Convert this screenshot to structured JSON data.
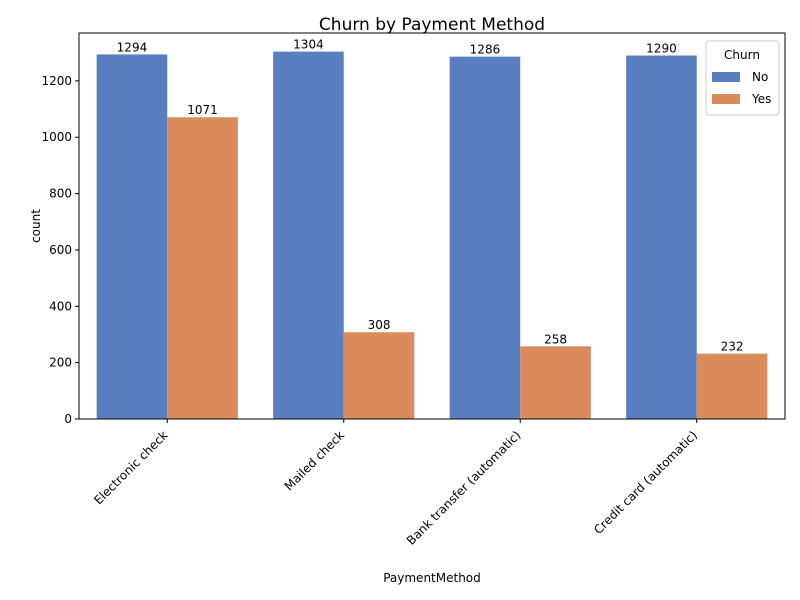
{
  "chart_data": {
    "type": "bar",
    "title": "Churn by Payment Method",
    "xlabel": "PaymentMethod",
    "ylabel": "count",
    "categories": [
      "Electronic check",
      "Mailed check",
      "Bank transfer (automatic)",
      "Credit card (automatic)"
    ],
    "series": [
      {
        "name": "No",
        "values": [
          1294,
          1304,
          1286,
          1290
        ],
        "color": "#5a7fc1"
      },
      {
        "name": "Yes",
        "values": [
          1071,
          308,
          258,
          232
        ],
        "color": "#d98b5b"
      }
    ],
    "ylim": [
      0,
      1370
    ],
    "yticks": [
      0,
      200,
      400,
      600,
      800,
      1000,
      1200
    ],
    "legend": {
      "title": "Churn",
      "placement": "top-right"
    },
    "grid": false,
    "data_labels": true
  }
}
